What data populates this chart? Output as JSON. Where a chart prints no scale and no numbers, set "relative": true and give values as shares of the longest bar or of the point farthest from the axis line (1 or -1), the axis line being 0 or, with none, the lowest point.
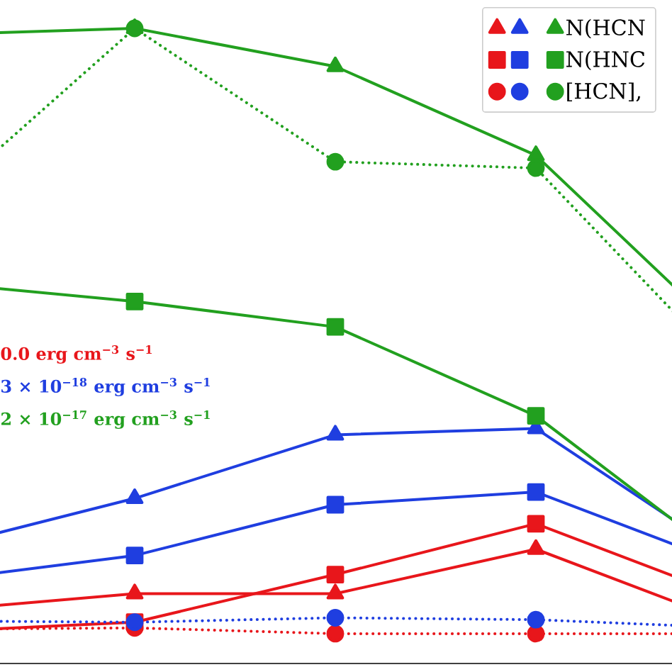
{
  "chart_data": {
    "type": "line",
    "relative": true,
    "legend": "top right",
    "categories": [
      null,
      null,
      null,
      null,
      null
    ],
    "series": [
      {
        "color": "#e8161b",
        "marker": "triangle",
        "line_style": "solid",
        "values": [
          0.083,
          0.11,
          0.11,
          0.18,
          0.06
        ]
      },
      {
        "color": "#e8161b",
        "marker": "square",
        "line_style": "solid",
        "values": [
          0.05,
          0.065,
          0.14,
          0.22,
          0.1
        ]
      },
      {
        "color": "#e8161b",
        "marker": "circle",
        "line_style": "dotted",
        "values": [
          0.054,
          0.056,
          0.047,
          0.047,
          0.047
        ]
      },
      {
        "color": "#1f3ee0",
        "marker": "triangle",
        "line_style": "solid",
        "values": [
          0.18,
          0.26,
          0.36,
          0.37,
          0.16
        ]
      },
      {
        "color": "#1f3ee0",
        "marker": "square",
        "line_style": "solid",
        "values": [
          0.13,
          0.17,
          0.25,
          0.27,
          0.15
        ]
      },
      {
        "color": "#1f3ee0",
        "marker": "circle",
        "line_style": "dotted",
        "values": [
          0.067,
          0.065,
          0.072,
          0.069,
          0.056
        ]
      },
      {
        "name": "N(HCN",
        "color": "#22a01f",
        "marker": "triangle",
        "line_style": "solid",
        "values": [
          0.99,
          1,
          0.94,
          0.8,
          0.5
        ]
      },
      {
        "name": "N(HNC",
        "color": "#22a01f",
        "marker": "square",
        "line_style": "solid",
        "values": [
          0.6,
          0.57,
          0.53,
          0.39,
          0.15
        ]
      },
      {
        "name": "[HCN],",
        "color": "#22a01f",
        "marker": "circle",
        "line_style": "dotted",
        "values": [
          0.72,
          1.0,
          0.79,
          0.78,
          0.45
        ]
      }
    ],
    "annotations": [
      "0.0 erg cm$^{−3}$ s$^{−1}$",
      "3 × 10$^{−18}$ erg cm$^{−3}$ s$^{−1}$",
      "2 × 10$^{−17}$ erg cm$^{−3}$ s$^{−1}$"
    ]
  }
}
